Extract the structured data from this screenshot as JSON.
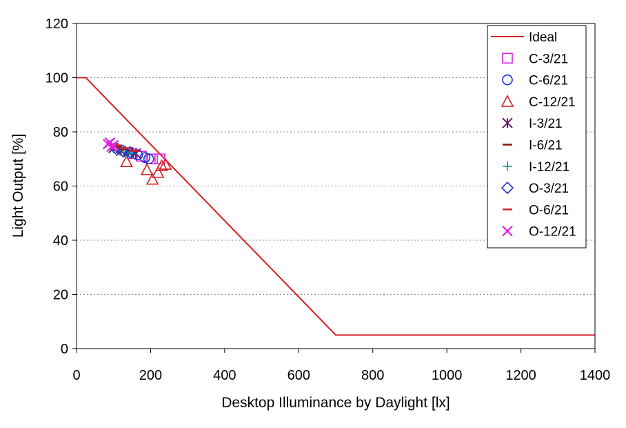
{
  "chart_data": {
    "type": "scatter",
    "title": "",
    "xlabel": "Desktop Illuminance by Daylight [lx]",
    "ylabel": "Light  Output [%]",
    "xlim": [
      0,
      1400
    ],
    "ylim": [
      0,
      120
    ],
    "x_ticks": [
      "0",
      "200",
      "400",
      "600",
      "800",
      "1000",
      "1200",
      "1400"
    ],
    "y_ticks": [
      "0",
      "20",
      "40",
      "60",
      "80",
      "100",
      "120"
    ],
    "grid": "horizontal dotted",
    "legend_position": "top-right",
    "series": [
      {
        "name": "Ideal",
        "marker": "line",
        "color": "#d42020",
        "points": [
          [
            0,
            100
          ],
          [
            25,
            100
          ],
          [
            700,
            5
          ],
          [
            1400,
            5
          ]
        ]
      },
      {
        "name": "C-3/21",
        "marker": "square",
        "color": "#e020e0",
        "points": [
          [
            150,
            72
          ],
          [
            175,
            71
          ],
          [
            205,
            70
          ],
          [
            225,
            70
          ]
        ]
      },
      {
        "name": "C-6/21",
        "marker": "circle",
        "color": "#1a2fd0",
        "points": [
          [
            165,
            71.5
          ],
          [
            185,
            70.5
          ],
          [
            195,
            70
          ]
        ]
      },
      {
        "name": "C-12/21",
        "marker": "triangle",
        "color": "#d42020",
        "points": [
          [
            135,
            69
          ],
          [
            190,
            66
          ],
          [
            205,
            62.5
          ],
          [
            220,
            65
          ],
          [
            230,
            67.5
          ],
          [
            240,
            68
          ]
        ]
      },
      {
        "name": "I-3/21",
        "marker": "asterisk",
        "color": "#6a1a6a",
        "points": [
          [
            100,
            74
          ],
          [
            120,
            73
          ],
          [
            140,
            72.5
          ],
          [
            160,
            72
          ]
        ]
      },
      {
        "name": "I-6/21",
        "marker": "dash",
        "color": "#8b1a1a",
        "points": [
          [
            110,
            74.5
          ],
          [
            130,
            73.5
          ],
          [
            150,
            73
          ]
        ]
      },
      {
        "name": "I-12/21",
        "marker": "plus",
        "color": "#0e8a8a",
        "points": [
          [
            115,
            73
          ],
          [
            135,
            72.5
          ],
          [
            150,
            72
          ]
        ]
      },
      {
        "name": "O-3/21",
        "marker": "diamond",
        "color": "#1a2fd0",
        "points": [
          [
            105,
            74
          ],
          [
            125,
            73
          ],
          [
            145,
            72.5
          ]
        ]
      },
      {
        "name": "O-6/21",
        "marker": "dash",
        "color": "#d42020",
        "points": [
          [
            110,
            75
          ],
          [
            130,
            74
          ],
          [
            155,
            73
          ]
        ]
      },
      {
        "name": "O-12/21",
        "marker": "x",
        "color": "#e020e0",
        "points": [
          [
            85,
            75.5
          ],
          [
            90,
            76
          ],
          [
            95,
            74.5
          ],
          [
            100,
            75
          ]
        ]
      }
    ]
  }
}
